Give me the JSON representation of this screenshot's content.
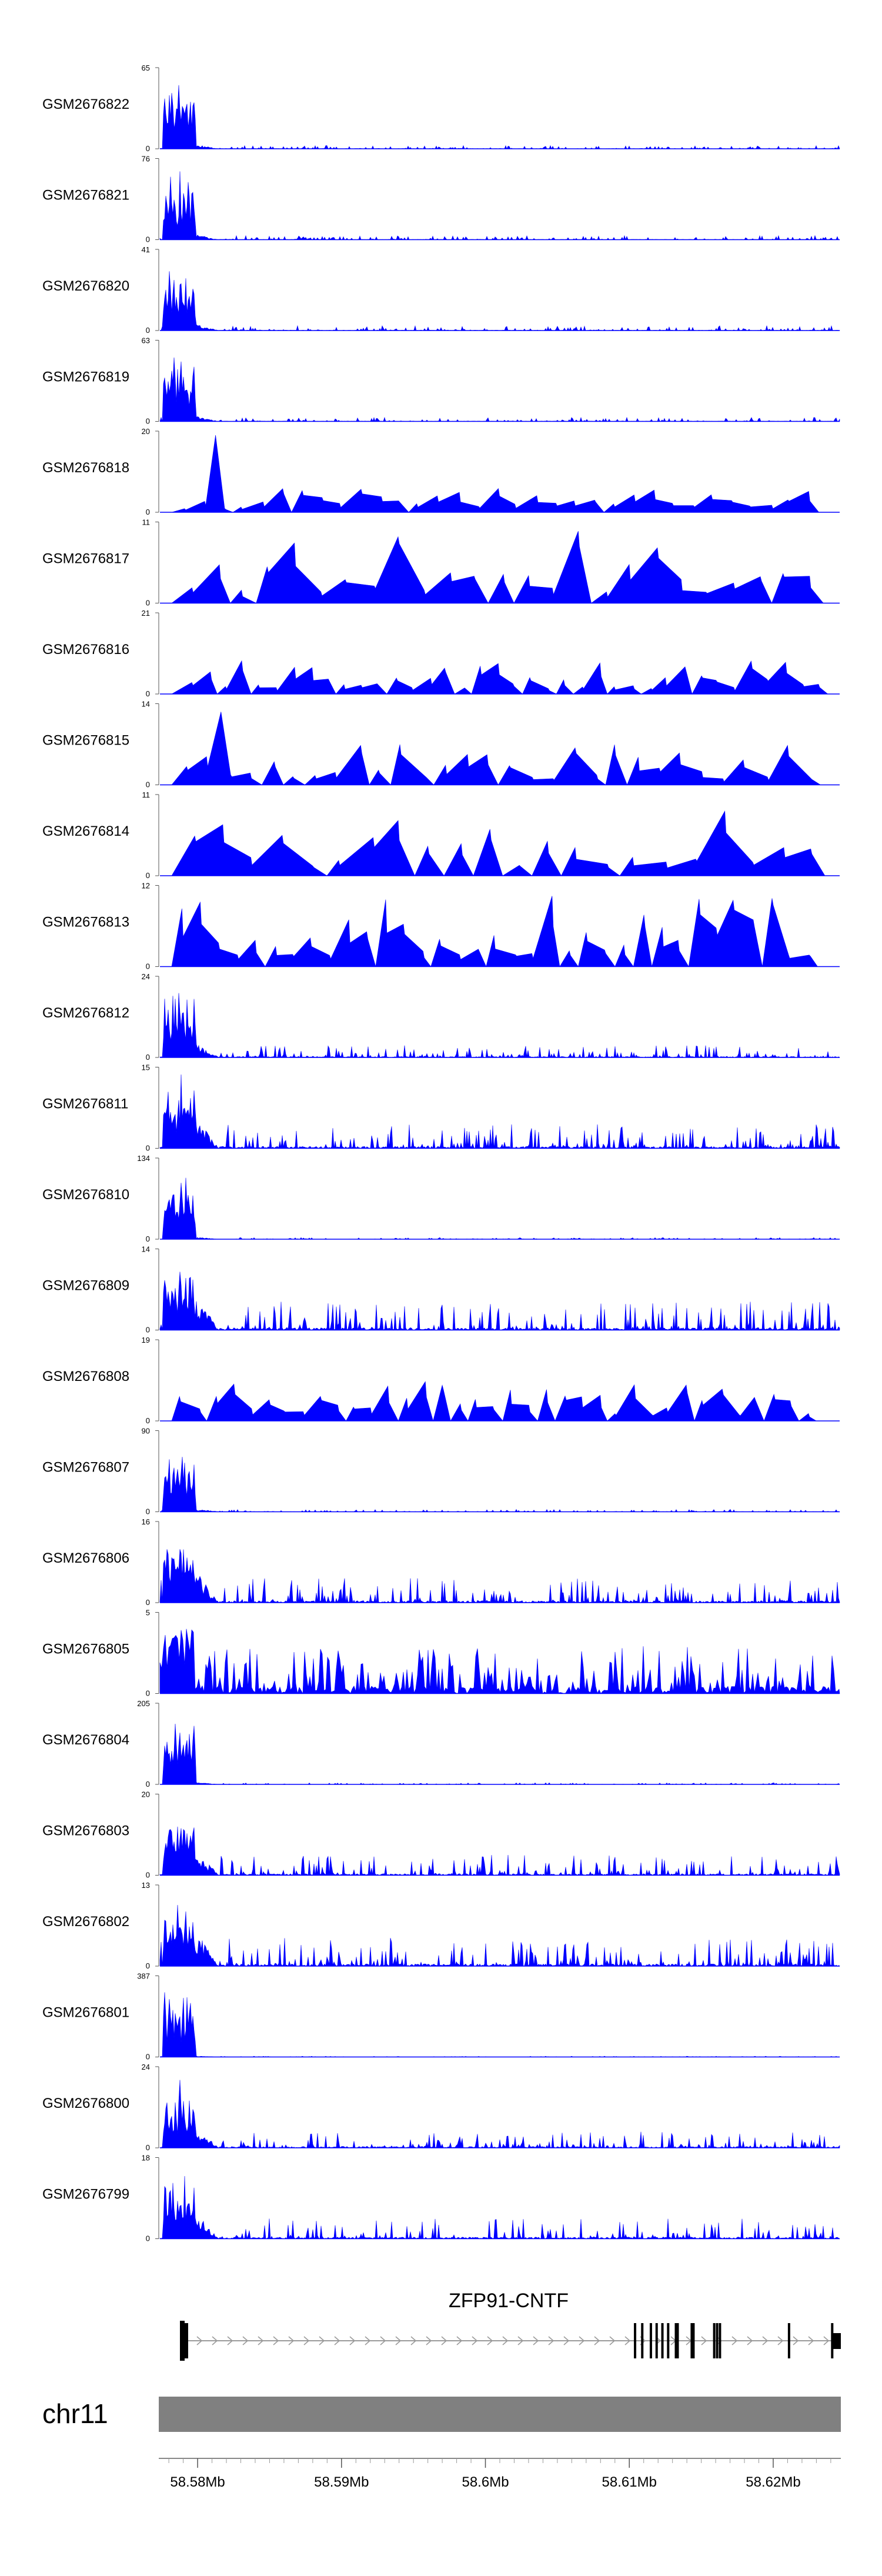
{
  "chart_data": {
    "type": "area",
    "title": "",
    "chromosome": "chr11",
    "gene": {
      "name": "ZFP91-CNTF",
      "exons_mb": [
        58.5792,
        58.6104,
        58.6109,
        58.6115,
        58.6119,
        58.6123,
        58.6127,
        58.6133,
        58.6144,
        58.6159,
        58.6161,
        58.6163,
        58.6211,
        58.6241
      ]
    },
    "x_axis": {
      "label": "",
      "range_mb": [
        58.5773,
        58.6247
      ],
      "ticks": [
        "58.58Mb",
        "58.59Mb",
        "58.6Mb",
        "58.61Mb",
        "58.62Mb"
      ],
      "tick_values": [
        58.58,
        58.59,
        58.6,
        58.61,
        58.62
      ]
    },
    "fill_color": "#0000ff",
    "ideogram_color": "#808080",
    "series": [
      {
        "name": "GSM2676822",
        "ymax": 65,
        "ymin": 0,
        "profile": "promoter",
        "peak": 0.98,
        "bg": 0.04,
        "sparse": 0
      },
      {
        "name": "GSM2676821",
        "ymax": 76,
        "ymin": 0,
        "profile": "promoter",
        "peak": 0.97,
        "bg": 0.05,
        "sparse": 0
      },
      {
        "name": "GSM2676820",
        "ymax": 41,
        "ymin": 0,
        "profile": "promoter",
        "peak": 0.95,
        "bg": 0.06,
        "sparse": 0
      },
      {
        "name": "GSM2676819",
        "ymax": 63,
        "ymin": 0,
        "profile": "promoter",
        "peak": 0.96,
        "bg": 0.05,
        "sparse": 0
      },
      {
        "name": "GSM2676818",
        "ymax": 20,
        "ymin": 0,
        "profile": "sparse",
        "peak": 0.95,
        "bg": 0.3,
        "sparse": 1
      },
      {
        "name": "GSM2676817",
        "ymax": 11,
        "ymin": 0,
        "profile": "sparse",
        "peak": 0.4,
        "bg": 0.9,
        "sparse": 1
      },
      {
        "name": "GSM2676816",
        "ymax": 21,
        "ymin": 0,
        "profile": "sparse",
        "peak": 0.3,
        "bg": 0.45,
        "sparse": 1
      },
      {
        "name": "GSM2676815",
        "ymax": 14,
        "ymin": 0,
        "profile": "sparse",
        "peak": 0.9,
        "bg": 0.5,
        "sparse": 1
      },
      {
        "name": "GSM2676814",
        "ymax": 11,
        "ymin": 0,
        "profile": "sparse",
        "peak": 0.45,
        "bg": 0.8,
        "sparse": 1
      },
      {
        "name": "GSM2676813",
        "ymax": 12,
        "ymin": 0,
        "profile": "sparse",
        "peak": 0.7,
        "bg": 0.9,
        "sparse": 1
      },
      {
        "name": "GSM2676812",
        "ymax": 24,
        "ymin": 0,
        "profile": "promoter",
        "peak": 0.95,
        "bg": 0.15,
        "sparse": 0
      },
      {
        "name": "GSM2676811",
        "ymax": 15,
        "ymin": 0,
        "profile": "promoter",
        "peak": 0.95,
        "bg": 0.3,
        "sparse": 0
      },
      {
        "name": "GSM2676810",
        "ymax": 134,
        "ymin": 0,
        "profile": "promoter",
        "peak": 0.97,
        "bg": 0.02,
        "sparse": 0
      },
      {
        "name": "GSM2676809",
        "ymax": 14,
        "ymin": 0,
        "profile": "promoter",
        "peak": 0.95,
        "bg": 0.35,
        "sparse": 0
      },
      {
        "name": "GSM2676808",
        "ymax": 19,
        "ymin": 0,
        "profile": "sparse",
        "peak": 0.6,
        "bg": 0.5,
        "sparse": 1
      },
      {
        "name": "GSM2676807",
        "ymax": 90,
        "ymin": 0,
        "profile": "promoter",
        "peak": 0.96,
        "bg": 0.03,
        "sparse": 0
      },
      {
        "name": "GSM2676806",
        "ymax": 16,
        "ymin": 0,
        "profile": "promoter",
        "peak": 0.97,
        "bg": 0.3,
        "sparse": 0
      },
      {
        "name": "GSM2676805",
        "ymax": 5,
        "ymin": 0,
        "profile": "noise",
        "peak": 0.9,
        "bg": 0.6,
        "sparse": 0
      },
      {
        "name": "GSM2676804",
        "ymax": 205,
        "ymin": 0,
        "profile": "promoter",
        "peak": 0.96,
        "bg": 0.02,
        "sparse": 0
      },
      {
        "name": "GSM2676803",
        "ymax": 20,
        "ymin": 0,
        "profile": "promoter",
        "peak": 0.95,
        "bg": 0.25,
        "sparse": 0
      },
      {
        "name": "GSM2676802",
        "ymax": 13,
        "ymin": 0,
        "profile": "promoter",
        "peak": 0.97,
        "bg": 0.35,
        "sparse": 0
      },
      {
        "name": "GSM2676801",
        "ymax": 387,
        "ymin": 0,
        "profile": "promoter",
        "peak": 0.97,
        "bg": 0.01,
        "sparse": 0
      },
      {
        "name": "GSM2676800",
        "ymax": 24,
        "ymin": 0,
        "profile": "promoter",
        "peak": 0.95,
        "bg": 0.2,
        "sparse": 0
      },
      {
        "name": "GSM2676799",
        "ymax": 18,
        "ymin": 0,
        "profile": "promoter",
        "peak": 0.95,
        "bg": 0.25,
        "sparse": 0
      }
    ]
  }
}
